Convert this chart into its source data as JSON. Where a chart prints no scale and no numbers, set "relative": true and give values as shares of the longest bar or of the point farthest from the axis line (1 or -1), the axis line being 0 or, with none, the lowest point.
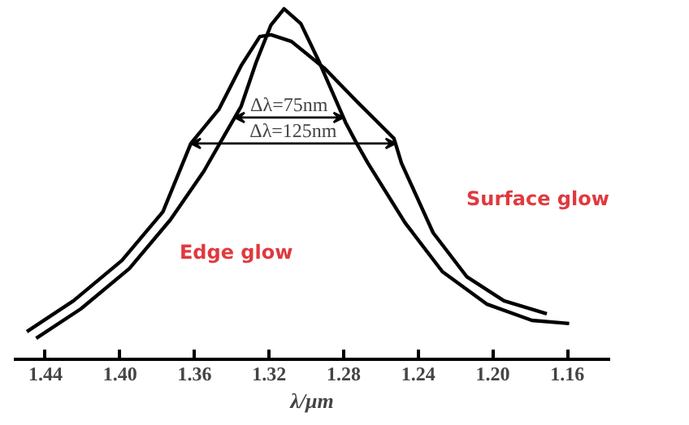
{
  "chart_data": {
    "type": "line",
    "relative": true,
    "xlabel": "λ/μm",
    "xlim": [
      1.457,
      1.137
    ],
    "xticks": [
      1.44,
      {
        "value": 1.4,
        "label": "1.40"
      },
      1.36,
      1.32,
      1.28,
      1.24,
      {
        "value": 1.2,
        "label": "1.20"
      },
      1.16
    ],
    "grid": false,
    "marker": "none",
    "line_style": "solid",
    "series": [
      {
        "name": "Edge glow",
        "color": "#000000",
        "x": [
          1.445,
          1.421,
          1.395,
          1.373,
          1.355,
          1.345,
          1.335,
          1.327,
          1.319,
          1.312,
          1.303,
          1.293,
          1.279,
          1.273,
          1.267,
          1.247,
          1.227,
          1.203,
          1.179,
          1.159
        ],
        "values": [
          0.06,
          0.144,
          0.259,
          0.398,
          0.537,
          0.63,
          0.722,
          0.847,
          0.954,
          1.0,
          0.958,
          0.847,
          0.676,
          0.616,
          0.56,
          0.389,
          0.25,
          0.157,
          0.111,
          0.102
        ]
      },
      {
        "name": "Surface glow",
        "color": "#000000",
        "x": [
          1.45,
          1.425,
          1.399,
          1.377,
          1.362,
          1.347,
          1.335,
          1.325,
          1.319,
          1.308,
          1.29,
          1.273,
          1.253,
          1.249,
          1.232,
          1.214,
          1.194,
          1.171
        ],
        "values": [
          0.079,
          0.167,
          0.282,
          0.421,
          0.616,
          0.713,
          0.838,
          0.921,
          0.926,
          0.907,
          0.829,
          0.736,
          0.63,
          0.56,
          0.361,
          0.236,
          0.167,
          0.13
        ]
      }
    ],
    "annotations": [
      "Δλ=75nm",
      "Δλ=125nm"
    ]
  }
}
